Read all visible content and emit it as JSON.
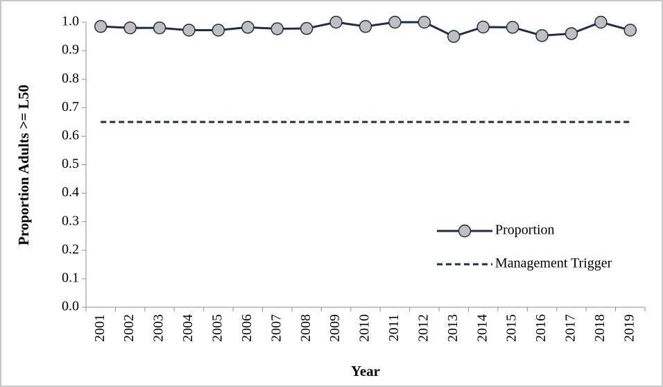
{
  "chart_data": {
    "type": "line",
    "x_label": "Year",
    "y_label": "Proportion Adults >= L50",
    "categories": [
      "2001",
      "2002",
      "2003",
      "2004",
      "2005",
      "2006",
      "2007",
      "2008",
      "2009",
      "2010",
      "2011",
      "2012",
      "2013",
      "2014",
      "2015",
      "2016",
      "2017",
      "2018",
      "2019"
    ],
    "series": [
      {
        "name": "Proportion",
        "color": "#1f2d4a",
        "marker": "circle",
        "marker_color": "#bfbfbf",
        "dashed": false,
        "values": [
          0.985,
          0.98,
          0.98,
          0.972,
          0.972,
          0.982,
          0.977,
          0.978,
          1.0,
          0.985,
          1.0,
          1.0,
          0.95,
          0.983,
          0.982,
          0.953,
          0.96,
          1.0,
          0.972
        ]
      },
      {
        "name": "Management Trigger",
        "color": "#1f2d4a",
        "marker": "none",
        "dashed": true,
        "values": [
          0.65,
          0.65,
          0.65,
          0.65,
          0.65,
          0.65,
          0.65,
          0.65,
          0.65,
          0.65,
          0.65,
          0.65,
          0.65,
          0.65,
          0.65,
          0.65,
          0.65,
          0.65,
          0.65
        ]
      }
    ],
    "ylim": [
      0,
      1.0
    ],
    "yticks": [
      {
        "value": 0,
        "label": "0.0"
      },
      0.1,
      0.2,
      0.3,
      0.4,
      0.5,
      0.6,
      0.7,
      0.8,
      0.9,
      {
        "value": 1.0,
        "label": "1.0"
      }
    ],
    "grid": false,
    "legend_position": "right"
  }
}
